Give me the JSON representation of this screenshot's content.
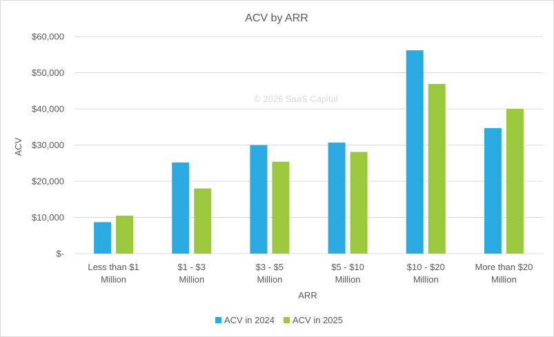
{
  "chart_data": {
    "type": "bar",
    "title": "ACV by ARR",
    "xlabel": "ARR",
    "ylabel": "ACV",
    "watermark": "© 2026 SaaS Capital",
    "categories": [
      [
        "Less than $1",
        "Million"
      ],
      [
        "$1 - $3",
        "Million"
      ],
      [
        "$3 - $5",
        "Million"
      ],
      [
        "$5 - $10",
        "Million"
      ],
      [
        "$10 - $20",
        "Million"
      ],
      [
        "More than $20",
        "Million"
      ]
    ],
    "series": [
      {
        "name": "ACV in 2024",
        "color": "#29abe2",
        "values": [
          8700,
          25200,
          30000,
          30700,
          56200,
          34700
        ]
      },
      {
        "name": "ACV in 2025",
        "color": "#9bc93d",
        "values": [
          10500,
          18000,
          25400,
          28100,
          46900,
          40000
        ]
      }
    ],
    "ylim": [
      0,
      60000
    ],
    "yticks": [
      0,
      10000,
      20000,
      30000,
      40000,
      50000,
      60000
    ],
    "ytick_labels": [
      "$-",
      "$10,000",
      "$20,000",
      "$30,000",
      "$40,000",
      "$50,000",
      "$60,000"
    ],
    "grid": true,
    "legend_position": "bottom"
  }
}
